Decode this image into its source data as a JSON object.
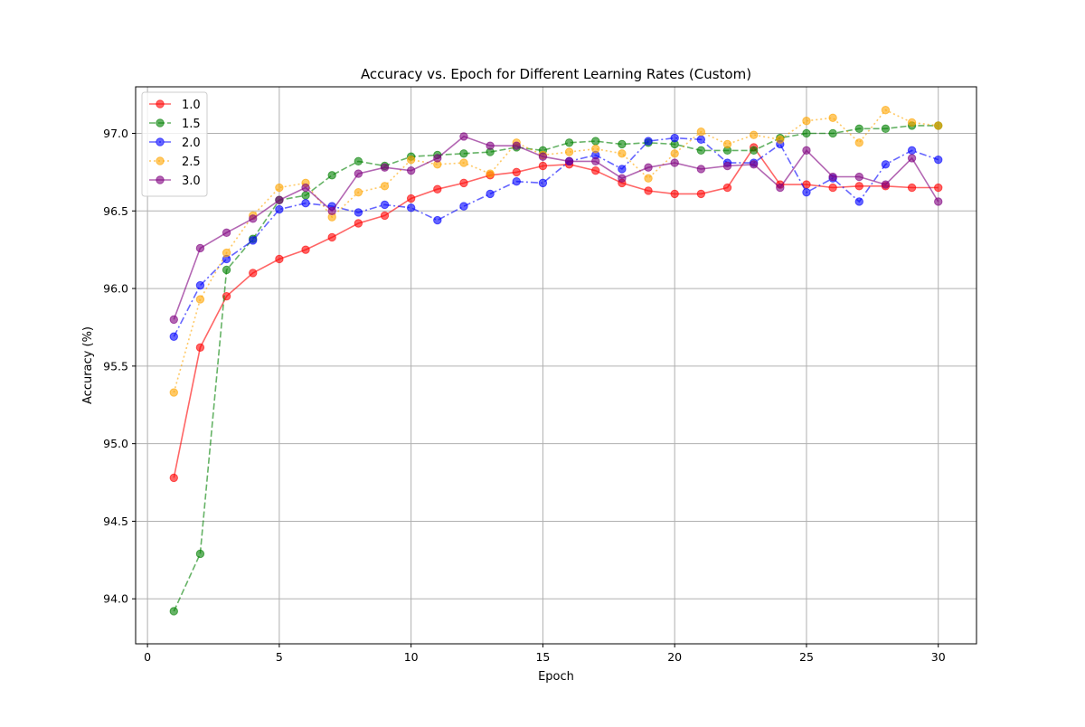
{
  "chart_data": {
    "type": "line",
    "title": "Accuracy vs. Epoch for Different Learning Rates (Custom)",
    "xlabel": "Epoch",
    "ylabel": "Accuracy (%)",
    "xlim": [
      -0.45,
      31.45
    ],
    "ylim": [
      93.71,
      97.3
    ],
    "xticks": [
      0,
      5,
      10,
      15,
      20,
      25,
      30
    ],
    "yticks": [
      94.0,
      94.5,
      95.0,
      95.5,
      96.0,
      96.5,
      97.0
    ],
    "grid": true,
    "legend_position": "top-left",
    "x": [
      1,
      2,
      3,
      4,
      5,
      6,
      7,
      8,
      9,
      10,
      11,
      12,
      13,
      14,
      15,
      16,
      17,
      18,
      19,
      20,
      21,
      22,
      23,
      24,
      25,
      26,
      27,
      28,
      29,
      30
    ],
    "series": [
      {
        "name": "1.0",
        "color": "#ff0000",
        "dash": "solid",
        "values": [
          94.78,
          95.62,
          95.95,
          96.1,
          96.19,
          96.25,
          96.33,
          96.42,
          96.47,
          96.58,
          96.64,
          96.68,
          96.73,
          96.75,
          96.79,
          96.8,
          96.76,
          96.68,
          96.63,
          96.61,
          96.61,
          96.65,
          96.91,
          96.67,
          96.67,
          96.65,
          96.66,
          96.66,
          96.65,
          96.65
        ]
      },
      {
        "name": "1.5",
        "color": "#008000",
        "dash": "dashed",
        "values": [
          93.92,
          94.29,
          96.12,
          96.32,
          96.57,
          96.6,
          96.73,
          96.82,
          96.79,
          96.85,
          96.86,
          96.87,
          96.88,
          96.91,
          96.89,
          96.94,
          96.95,
          96.93,
          96.94,
          96.93,
          96.89,
          96.89,
          96.89,
          96.97,
          97.0,
          97.0,
          97.03,
          97.03,
          97.05,
          97.05
        ]
      },
      {
        "name": "2.0",
        "color": "#0000ff",
        "dash": "dashdot",
        "values": [
          95.69,
          96.02,
          96.19,
          96.31,
          96.51,
          96.55,
          96.53,
          96.49,
          96.54,
          96.52,
          96.44,
          96.53,
          96.61,
          96.69,
          96.68,
          96.82,
          96.86,
          96.77,
          96.95,
          96.97,
          96.96,
          96.81,
          96.81,
          96.93,
          96.62,
          96.71,
          96.56,
          96.8,
          96.89,
          96.83
        ]
      },
      {
        "name": "2.5",
        "color": "#ffa500",
        "dash": "dotted",
        "values": [
          95.33,
          95.93,
          96.23,
          96.47,
          96.65,
          96.68,
          96.46,
          96.62,
          96.66,
          96.83,
          96.8,
          96.81,
          96.74,
          96.94,
          96.86,
          96.88,
          96.9,
          96.87,
          96.71,
          96.87,
          97.01,
          96.93,
          96.99,
          96.96,
          97.08,
          97.1,
          96.94,
          97.15,
          97.07,
          97.05
        ]
      },
      {
        "name": "3.0",
        "color": "#800080",
        "dash": "solid",
        "values": [
          95.8,
          96.26,
          96.36,
          96.45,
          96.57,
          96.65,
          96.5,
          96.74,
          96.78,
          96.76,
          96.84,
          96.98,
          96.92,
          96.92,
          96.85,
          96.82,
          96.82,
          96.71,
          96.78,
          96.81,
          96.77,
          96.79,
          96.8,
          96.65,
          96.89,
          96.72,
          96.72,
          96.67,
          96.84,
          96.56
        ]
      }
    ]
  }
}
